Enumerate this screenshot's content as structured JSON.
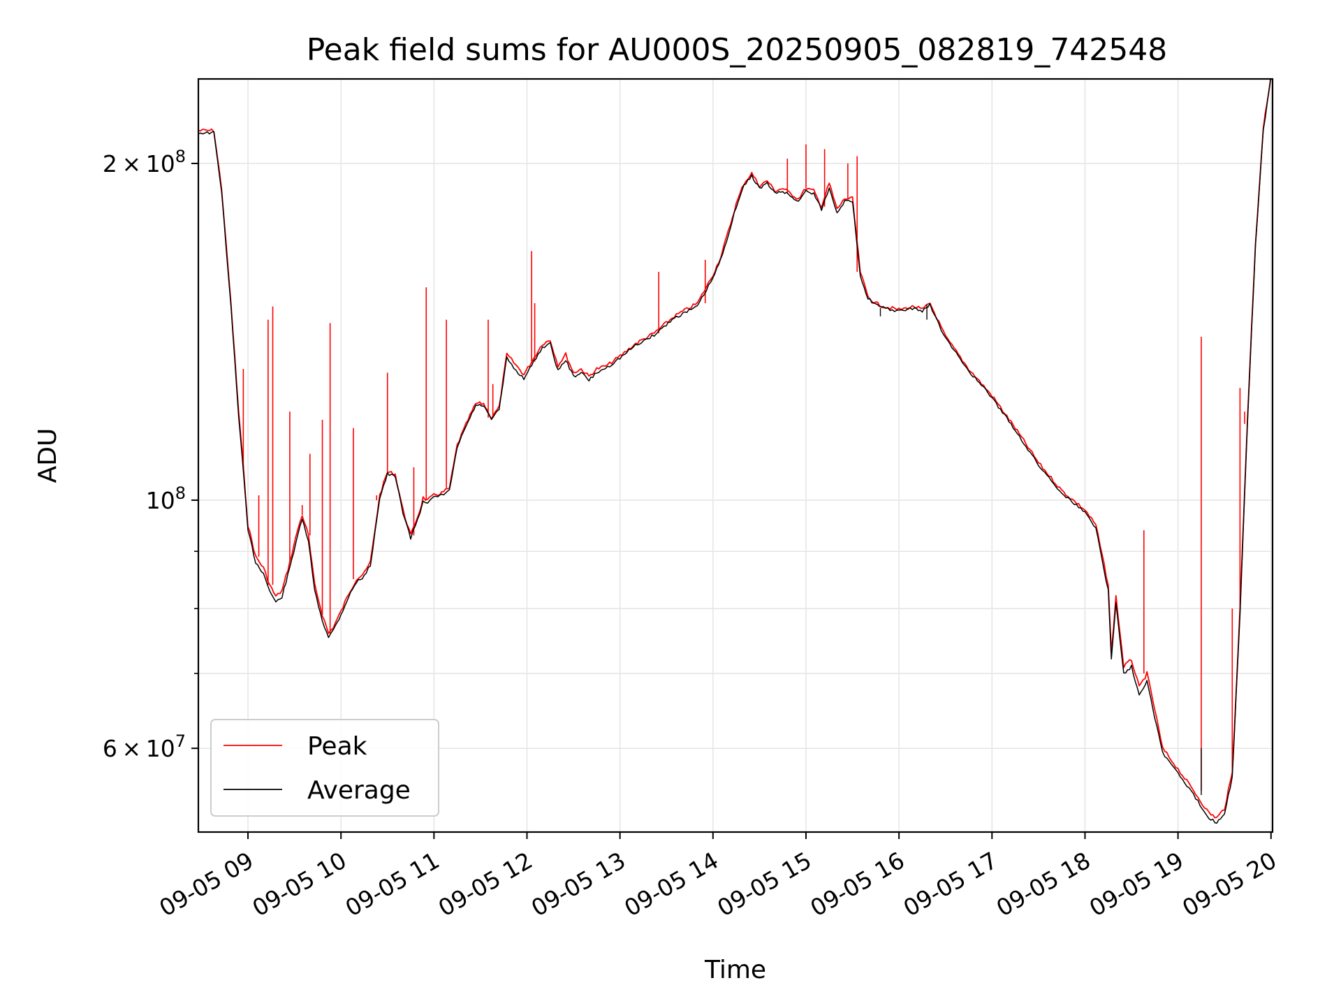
{
  "chart_data": {
    "type": "line",
    "title": "Peak field sums for AU000S_20250905_082819_742548",
    "xlabel": "Time",
    "ylabel": "ADU",
    "yscale": "log",
    "ylim": [
      50500000,
      238000000
    ],
    "xlim": [
      "2025-09-05 08:28",
      "2025-09-05 20:01"
    ],
    "grid": true,
    "legend_position": "lower-left",
    "x_ticks": [
      "09-05 09",
      "09-05 10",
      "09-05 11",
      "09-05 12",
      "09-05 13",
      "09-05 14",
      "09-05 15",
      "09-05 16",
      "09-05 17",
      "09-05 18",
      "09-05 19",
      "09-05 20"
    ],
    "y_ticks": [
      {
        "value": 60000000,
        "mantissa": "6",
        "exponent": "7"
      },
      {
        "value": 100000000,
        "mantissa": "",
        "exponent": "8"
      },
      {
        "value": 200000000,
        "mantissa": "2",
        "exponent": "8"
      }
    ],
    "y_minor_ticks": [
      70000000,
      80000000,
      90000000
    ],
    "colors": {
      "Peak": "#ff0000",
      "Average": "#000000"
    },
    "x": [
      "2025-09-05 08:28",
      "2025-09-05 08:38",
      "2025-09-05 08:43",
      "2025-09-05 08:49",
      "2025-09-05 08:54",
      "2025-09-05 08:57",
      "2025-09-05 09:00",
      "2025-09-05 09:05",
      "2025-09-05 09:10",
      "2025-09-05 09:14",
      "2025-09-05 09:18",
      "2025-09-05 09:22",
      "2025-09-05 09:27",
      "2025-09-05 09:32",
      "2025-09-05 09:35",
      "2025-09-05 09:39",
      "2025-09-05 09:43",
      "2025-09-05 09:48",
      "2025-09-05 09:52",
      "2025-09-05 09:55",
      "2025-09-05 10:00",
      "2025-09-05 10:05",
      "2025-09-05 10:10",
      "2025-09-05 10:15",
      "2025-09-05 10:19",
      "2025-09-05 10:25",
      "2025-09-05 10:30",
      "2025-09-05 10:35",
      "2025-09-05 10:40",
      "2025-09-05 10:45",
      "2025-09-05 10:51",
      "2025-09-05 10:53",
      "2025-09-05 10:56",
      "2025-09-05 11:00",
      "2025-09-05 11:05",
      "2025-09-05 11:10",
      "2025-09-05 11:15",
      "2025-09-05 11:22",
      "2025-09-05 11:27",
      "2025-09-05 11:32",
      "2025-09-05 11:37",
      "2025-09-05 11:42",
      "2025-09-05 11:47",
      "2025-09-05 11:53",
      "2025-09-05 11:58",
      "2025-09-05 12:03",
      "2025-09-05 12:10",
      "2025-09-05 12:15",
      "2025-09-05 12:20",
      "2025-09-05 12:25",
      "2025-09-05 12:30",
      "2025-09-05 12:35",
      "2025-09-05 12:40",
      "2025-09-05 12:45",
      "2025-09-05 12:52",
      "2025-09-05 13:00",
      "2025-09-05 13:10",
      "2025-09-05 13:22",
      "2025-09-05 13:35",
      "2025-09-05 13:50",
      "2025-09-05 14:00",
      "2025-09-05 14:05",
      "2025-09-05 14:10",
      "2025-09-05 14:15",
      "2025-09-05 14:20",
      "2025-09-05 14:25",
      "2025-09-05 14:30",
      "2025-09-05 14:35",
      "2025-09-05 14:40",
      "2025-09-05 14:45",
      "2025-09-05 14:50",
      "2025-09-05 14:55",
      "2025-09-05 15:00",
      "2025-09-05 15:05",
      "2025-09-05 15:10",
      "2025-09-05 15:15",
      "2025-09-05 15:20",
      "2025-09-05 15:25",
      "2025-09-05 15:30",
      "2025-09-05 15:35",
      "2025-09-05 15:40",
      "2025-09-05 15:45",
      "2025-09-05 15:50",
      "2025-09-05 16:00",
      "2025-09-05 16:10",
      "2025-09-05 16:15",
      "2025-09-05 16:20",
      "2025-09-05 16:30",
      "2025-09-05 16:45",
      "2025-09-05 17:00",
      "2025-09-05 17:15",
      "2025-09-05 17:30",
      "2025-09-05 17:45",
      "2025-09-05 18:00",
      "2025-09-05 18:07",
      "2025-09-05 18:15",
      "2025-09-05 18:17",
      "2025-09-05 18:20",
      "2025-09-05 18:25",
      "2025-09-05 18:30",
      "2025-09-05 18:35",
      "2025-09-05 18:40",
      "2025-09-05 18:45",
      "2025-09-05 18:50",
      "2025-09-05 19:00",
      "2025-09-05 19:10",
      "2025-09-05 19:20",
      "2025-09-05 19:25",
      "2025-09-05 19:30",
      "2025-09-05 19:35",
      "2025-09-05 19:40",
      "2025-09-05 19:45",
      "2025-09-05 19:50",
      "2025-09-05 19:55",
      "2025-09-05 20:00"
    ],
    "series": [
      {
        "name": "Peak",
        "values": [
          214000000,
          214000000,
          190000000,
          150000000,
          120000000,
          107000000,
          95000000,
          89000000,
          87000000,
          84000000,
          82000000,
          83000000,
          88000000,
          94000000,
          97000000,
          93000000,
          84000000,
          79000000,
          76000000,
          77000000,
          79500000,
          82500000,
          85000000,
          86000000,
          88000000,
          101000000,
          106000000,
          105500000,
          98000000,
          93000000,
          98000000,
          100500000,
          100000000,
          101000000,
          101500000,
          102500000,
          112000000,
          118000000,
          122000000,
          122000000,
          118500000,
          121000000,
          135000000,
          132000000,
          129500000,
          133000000,
          138000000,
          139000000,
          132000000,
          135000000,
          130000000,
          131000000,
          129000000,
          131000000,
          132000000,
          134500000,
          138000000,
          141000000,
          146000000,
          150000000,
          159000000,
          165000000,
          174000000,
          184000000,
          192000000,
          196000000,
          191000000,
          193000000,
          189000000,
          190000000,
          188000000,
          186000000,
          190000000,
          189000000,
          183000000,
          192000000,
          182000000,
          186000000,
          186000000,
          160000000,
          152000000,
          150000000,
          149000000,
          148000000,
          149000000,
          148000000,
          150000000,
          140000000,
          131000000,
          124000000,
          116000000,
          108000000,
          102000000,
          98000000,
          95000000,
          84000000,
          73000000,
          82000000,
          71000000,
          72000000,
          68000000,
          70000000,
          65000000,
          60000000,
          57500000,
          55000000,
          52500000,
          52000000,
          53000000,
          57000000,
          80000000,
          120000000,
          170000000,
          215000000,
          240000000
        ]
      },
      {
        "name": "Average",
        "values": [
          213000000,
          213000000,
          189000000,
          149000000,
          119000000,
          106000000,
          94000000,
          88000000,
          86000000,
          83000000,
          81000000,
          82000000,
          87000000,
          93000000,
          96000000,
          92000000,
          83000000,
          78000000,
          75500000,
          76500000,
          79000000,
          82000000,
          84500000,
          85500000,
          87500000,
          100500000,
          105500000,
          105000000,
          97500000,
          92500000,
          97500000,
          100000000,
          99500000,
          100500000,
          101000000,
          102000000,
          111500000,
          117500000,
          121500000,
          121500000,
          118000000,
          120500000,
          134000000,
          130500000,
          128500000,
          132000000,
          137000000,
          138000000,
          130500000,
          133500000,
          129000000,
          130000000,
          128000000,
          130000000,
          131500000,
          134000000,
          137500000,
          140500000,
          145500000,
          149000000,
          158000000,
          164000000,
          173000000,
          183000000,
          191000000,
          195000000,
          190000000,
          192000000,
          188000000,
          189000000,
          187000000,
          185000000,
          189000000,
          188000000,
          182000000,
          190000000,
          181000000,
          185000000,
          185000000,
          159000000,
          151500000,
          149500000,
          148500000,
          147500000,
          148500000,
          147500000,
          149500000,
          139500000,
          130500000,
          123500000,
          115500000,
          107500000,
          101500000,
          97500000,
          94500000,
          83000000,
          72000000,
          81000000,
          70000000,
          71000000,
          67000000,
          69000000,
          64000000,
          59500000,
          57000000,
          54500000,
          52000000,
          51500000,
          52500000,
          56500000,
          79000000,
          119000000,
          169000000,
          214000000,
          239000000
        ]
      }
    ],
    "spikes": {
      "Peak": [
        [
          "2025-09-05 08:57",
          131000000
        ],
        [
          "2025-09-05 09:07",
          101000000
        ],
        [
          "2025-09-05 09:13",
          145000000
        ],
        [
          "2025-09-05 09:16",
          149000000
        ],
        [
          "2025-09-05 09:27",
          120000000
        ],
        [
          "2025-09-05 09:35",
          99000000
        ],
        [
          "2025-09-05 09:40",
          110000000
        ],
        [
          "2025-09-05 09:48",
          118000000
        ],
        [
          "2025-09-05 09:53",
          144000000
        ],
        [
          "2025-09-05 10:08",
          116000000
        ],
        [
          "2025-09-05 10:23",
          100000000
        ],
        [
          "2025-09-05 10:30",
          130000000
        ],
        [
          "2025-09-05 10:47",
          107000000
        ],
        [
          "2025-09-05 10:55",
          155000000
        ],
        [
          "2025-09-05 11:08",
          145000000
        ],
        [
          "2025-09-05 11:35",
          145000000
        ],
        [
          "2025-09-05 11:38",
          127000000
        ],
        [
          "2025-09-05 12:03",
          167000000
        ],
        [
          "2025-09-05 12:05",
          150000000
        ],
        [
          "2025-09-05 13:25",
          160000000
        ],
        [
          "2025-09-05 13:55",
          164000000
        ],
        [
          "2025-09-05 14:48",
          202000000
        ],
        [
          "2025-09-05 15:00",
          208000000
        ],
        [
          "2025-09-05 15:12",
          206000000
        ],
        [
          "2025-09-05 15:27",
          200000000
        ],
        [
          "2025-09-05 15:33",
          203000000
        ],
        [
          "2025-09-05 18:38",
          94000000
        ],
        [
          "2025-09-05 19:15",
          140000000
        ],
        [
          "2025-09-05 19:35",
          80000000
        ],
        [
          "2025-09-05 19:40",
          126000000
        ],
        [
          "2025-09-05 19:43",
          117000000
        ]
      ],
      "Average": [
        [
          "2025-09-05 16:18",
          145000000
        ],
        [
          "2025-09-05 15:48",
          146000000
        ],
        [
          "2025-09-05 19:15",
          60000000
        ]
      ]
    }
  }
}
